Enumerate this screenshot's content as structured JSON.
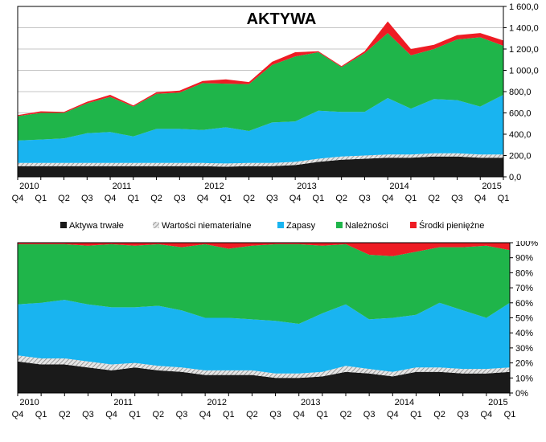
{
  "chart_data": [
    {
      "type": "area",
      "title": "AKTYWA",
      "stacked": true,
      "categories": [
        "Q4",
        "Q1",
        "Q2",
        "Q3",
        "Q4",
        "Q1",
        "Q2",
        "Q3",
        "Q4",
        "Q1",
        "Q2",
        "Q3",
        "Q4",
        "Q1",
        "Q2",
        "Q3",
        "Q4",
        "Q1",
        "Q2",
        "Q3",
        "Q4",
        "Q1"
      ],
      "year_labels": [
        {
          "label": "2010",
          "index": 0
        },
        {
          "label": "2011",
          "index": 4
        },
        {
          "label": "2012",
          "index": 8
        },
        {
          "label": "2013",
          "index": 12
        },
        {
          "label": "2014",
          "index": 16
        },
        {
          "label": "2015",
          "index": 20
        }
      ],
      "ylim": [
        0,
        1600
      ],
      "yticks": [
        "0,0",
        "200,0",
        "400,0",
        "600,0",
        "800,0",
        "1 000,0",
        "1 200,0",
        "1 400,0",
        "1 600,0"
      ],
      "grid": true,
      "legend_position": "bottom",
      "series": [
        {
          "name": "Aktywa trwałe",
          "color": "#1a1a1a",
          "values": [
            100,
            100,
            100,
            100,
            100,
            100,
            100,
            100,
            100,
            95,
            100,
            100,
            110,
            140,
            160,
            170,
            180,
            180,
            190,
            190,
            180,
            180
          ]
        },
        {
          "name": "Wartości niematerialne",
          "color": "#c8c8c8",
          "values": [
            30,
            30,
            30,
            30,
            30,
            30,
            30,
            30,
            30,
            30,
            30,
            30,
            30,
            30,
            30,
            30,
            30,
            30,
            30,
            30,
            30,
            30
          ]
        },
        {
          "name": "Zapasy",
          "color": "#19b4f0",
          "values": [
            210,
            220,
            230,
            280,
            290,
            250,
            320,
            320,
            310,
            340,
            300,
            380,
            380,
            450,
            420,
            410,
            530,
            430,
            510,
            500,
            450,
            560
          ]
        },
        {
          "name": "Należności",
          "color": "#1fb54a",
          "values": [
            230,
            250,
            240,
            280,
            330,
            280,
            330,
            340,
            440,
            410,
            440,
            540,
            610,
            550,
            420,
            550,
            610,
            500,
            470,
            570,
            650,
            460
          ]
        },
        {
          "name": "Środki pieniężne",
          "color": "#ee1c24",
          "values": [
            10,
            15,
            10,
            15,
            20,
            10,
            15,
            20,
            20,
            40,
            20,
            30,
            40,
            10,
            10,
            20,
            110,
            60,
            40,
            40,
            40,
            50
          ]
        }
      ]
    },
    {
      "type": "area",
      "stacked": true,
      "normalized": true,
      "categories": [
        "Q4",
        "Q1",
        "Q2",
        "Q3",
        "Q4",
        "Q1",
        "Q2",
        "Q3",
        "Q4",
        "Q1",
        "Q2",
        "Q3",
        "Q4",
        "Q1",
        "Q2",
        "Q3",
        "Q4",
        "Q1",
        "Q2",
        "Q3",
        "Q4",
        "Q1"
      ],
      "year_labels": [
        {
          "label": "2010",
          "index": 0
        },
        {
          "label": "2011",
          "index": 4
        },
        {
          "label": "2012",
          "index": 8
        },
        {
          "label": "2013",
          "index": 12
        },
        {
          "label": "2014",
          "index": 16
        },
        {
          "label": "2015",
          "index": 20
        }
      ],
      "ylim": [
        0,
        100
      ],
      "yticks": [
        "0%",
        "10%",
        "20%",
        "30%",
        "40%",
        "50%",
        "60%",
        "70%",
        "80%",
        "90%",
        "100%"
      ],
      "grid": true,
      "series": [
        {
          "name": "Aktywa trwałe",
          "color": "#1a1a1a",
          "values": [
            21,
            19,
            19,
            17,
            15,
            17,
            15,
            14,
            12,
            12,
            12,
            10,
            10,
            11,
            14,
            13,
            11,
            14,
            14,
            13,
            13,
            14
          ]
        },
        {
          "name": "Wartości niematerialne",
          "color": "#c8c8c8",
          "values": [
            4,
            4,
            4,
            4,
            4,
            3,
            3,
            3,
            3,
            3,
            3,
            3,
            3,
            3,
            4,
            3,
            3,
            3,
            3,
            3,
            3,
            3
          ]
        },
        {
          "name": "Zapasy",
          "color": "#19b4f0",
          "values": [
            34,
            37,
            39,
            38,
            38,
            37,
            40,
            38,
            35,
            35,
            34,
            35,
            33,
            39,
            41,
            33,
            36,
            35,
            43,
            39,
            34,
            43
          ]
        },
        {
          "name": "Należności",
          "color": "#1fb54a",
          "values": [
            40,
            39,
            37,
            39,
            42,
            41,
            41,
            42,
            49,
            46,
            49,
            51,
            53,
            45,
            40,
            43,
            41,
            42,
            37,
            42,
            48,
            35
          ]
        },
        {
          "name": "Środki pieniężne",
          "color": "#ee1c24",
          "values": [
            1,
            1,
            1,
            2,
            1,
            2,
            1,
            3,
            1,
            4,
            2,
            1,
            1,
            2,
            1,
            8,
            9,
            6,
            3,
            3,
            2,
            5
          ]
        }
      ]
    }
  ]
}
